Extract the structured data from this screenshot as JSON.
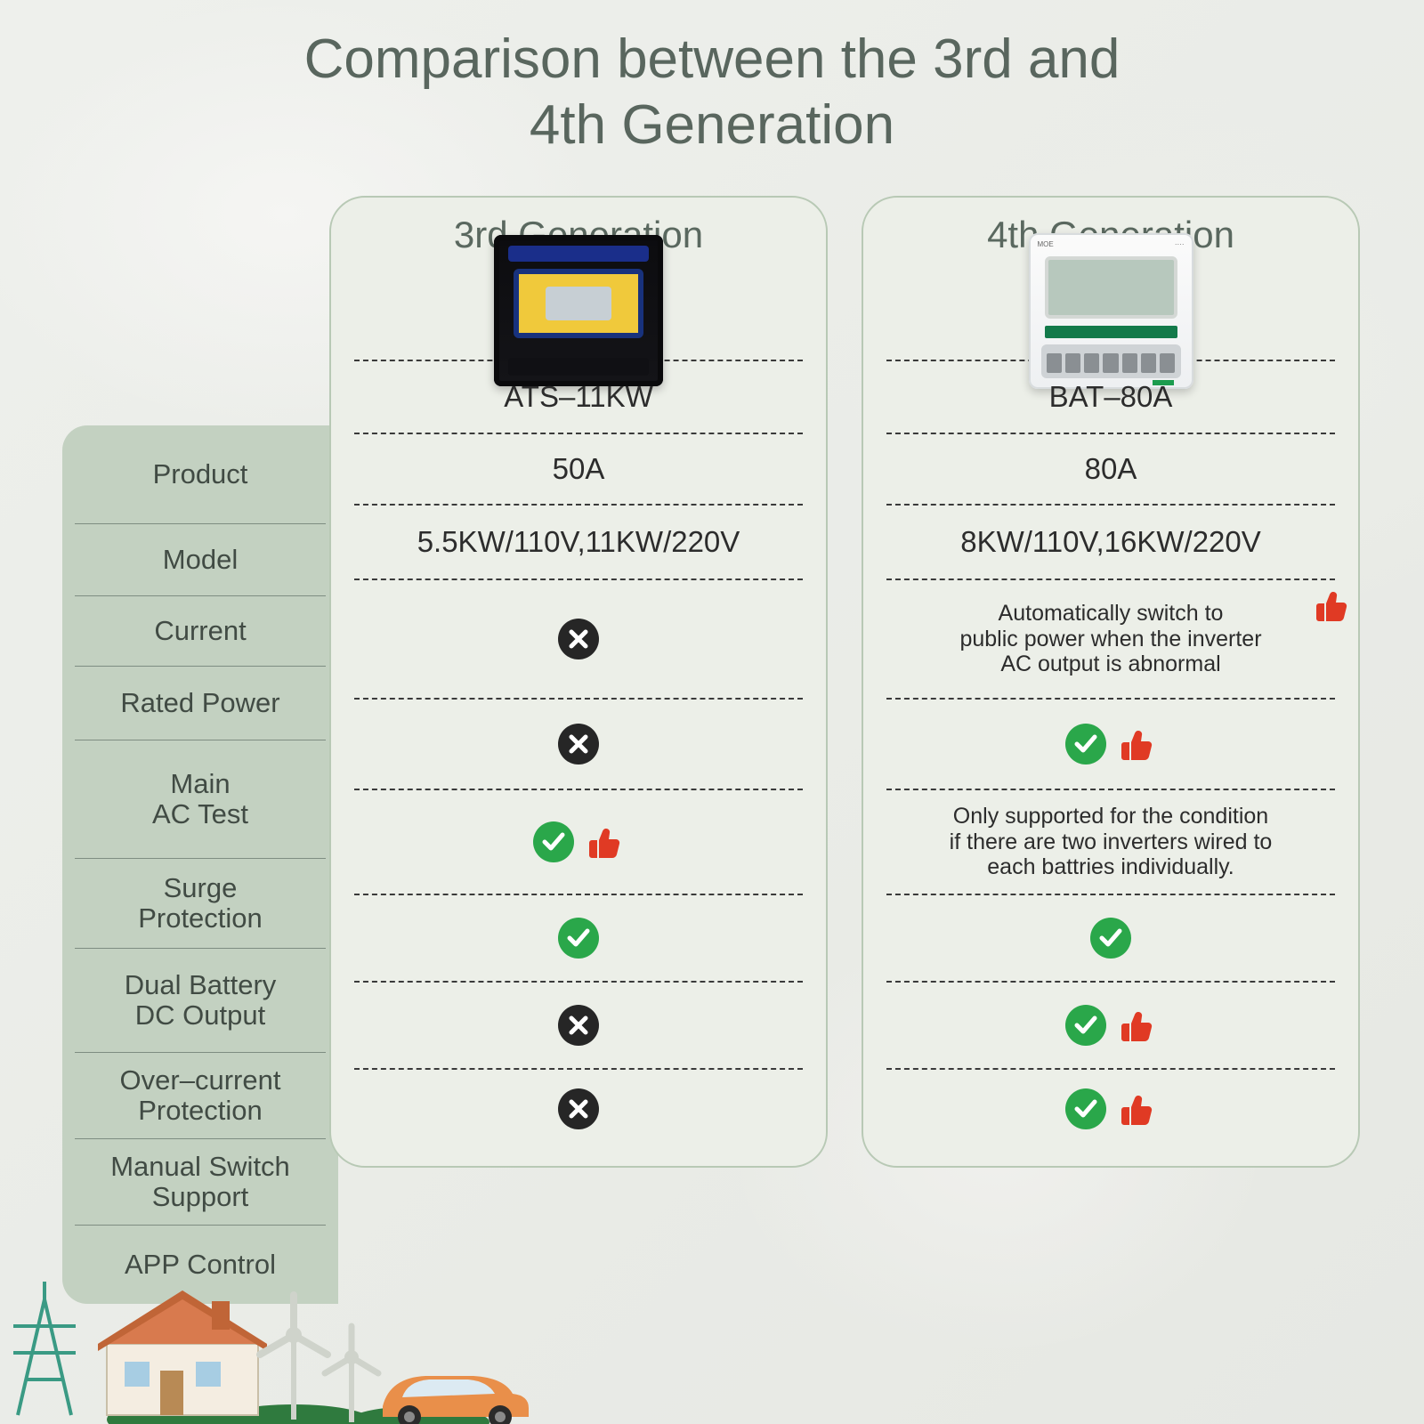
{
  "title_line1": "Comparison between the 3rd and",
  "title_line2": "4th Generation",
  "colors": {
    "title_text": "#59665e",
    "label_bg": "#c3d1c1",
    "label_text": "#414b44",
    "label_sep": "#7e8d82",
    "card_bg": "#ecefe8",
    "card_border": "#b8c9b5",
    "value_text": "#2c2c2c",
    "dash": "#3a3a3a",
    "check_bg": "#2aa74a",
    "cross_bg": "#262626",
    "thumb": "#e03a24"
  },
  "row_heights": {
    "product": 110,
    "model": 80,
    "current": 78,
    "rated_power": 82,
    "main_ac_test": 132,
    "surge_protection": 100,
    "dual_battery": 116,
    "over_current": 96,
    "manual_switch": 96,
    "app_control": 88
  },
  "labels": {
    "product": "Product",
    "model": "Model",
    "current": "Current",
    "rated_power": "Rated Power",
    "main_ac_test_l1": "Main",
    "main_ac_test_l2": "AC Test",
    "surge_l1": "Surge",
    "surge_l2": "Protection",
    "dual_l1": "Dual Battery",
    "dual_l2": "DC Output",
    "over_l1": "Over–current",
    "over_l2": "Protection",
    "manual_l1": "Manual Switch",
    "manual_l2": "Support",
    "app": "APP Control"
  },
  "gen3": {
    "header": "3rd Generation",
    "model": "ATS–11KW",
    "current": "50A",
    "rated_power": "5.5KW/110V,11KW/220V",
    "main_ac_test": "cross",
    "surge_protection": "cross",
    "dual_battery": "check_thumb",
    "over_current": "check",
    "manual_switch": "cross",
    "app_control": "cross"
  },
  "gen4": {
    "header": "4th Generation",
    "model": "BAT–80A",
    "current": "80A",
    "rated_power": "8KW/110V,16KW/220V",
    "main_ac_test_note_l1": "Automatically switch to",
    "main_ac_test_note_l2": "public power when the inverter",
    "main_ac_test_note_l3": "AC output is abnormal",
    "main_ac_test_thumb": true,
    "surge_protection": "check_thumb",
    "dual_battery_note_l1": "Only supported for the condition",
    "dual_battery_note_l2": "if there are two inverters wired to",
    "dual_battery_note_l3": "each battries individually.",
    "over_current": "check",
    "manual_switch": "check_thumb",
    "app_control": "check_thumb"
  }
}
